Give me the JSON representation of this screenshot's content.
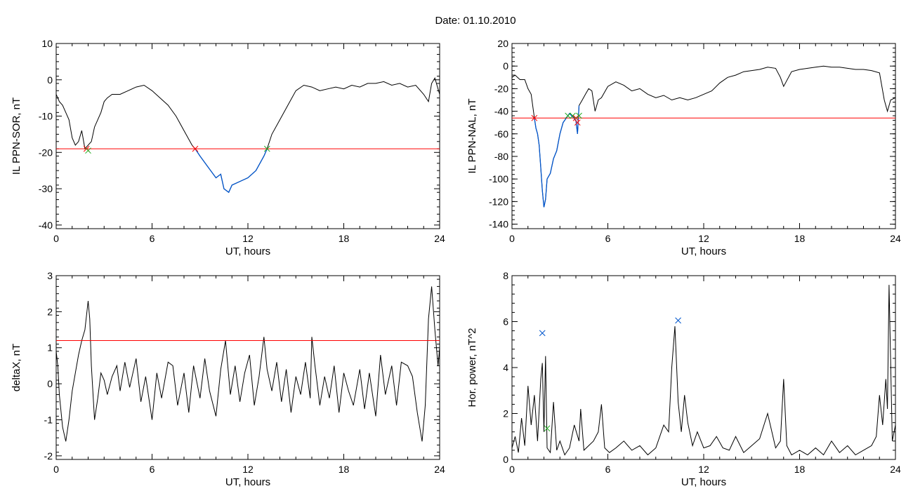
{
  "title": "Date:  01.10.2010",
  "chart_data": [
    {
      "type": "line",
      "id": "p1",
      "xlabel": "UT, hours",
      "ylabel": "IL PPN-SOR, nT",
      "xlim": [
        0,
        24
      ],
      "ylim": [
        -41,
        10
      ],
      "xticks": [
        0,
        6,
        12,
        18,
        24
      ],
      "yticks": [
        10,
        0,
        -10,
        -20,
        -30,
        -40
      ],
      "threshold": -19,
      "main_color": "#000000",
      "highlight_color": "#0055cc",
      "threshold_color": "#ff0000",
      "series": [
        {
          "x": [
            0,
            0.2,
            0.4,
            0.6,
            0.8,
            1.0,
            1.2,
            1.4,
            1.6,
            1.8,
            2.0,
            2.2,
            2.4,
            2.6,
            2.8,
            3.0,
            3.2,
            3.5,
            4.0,
            4.5,
            5.0,
            5.5,
            6.0,
            6.5,
            7.0,
            7.5,
            8.0,
            8.5,
            8.7,
            9.0,
            9.5,
            10.0,
            10.3,
            10.5,
            10.8,
            11.0,
            11.5,
            12.0,
            12.5,
            13.0,
            13.2,
            13.5,
            14.0,
            14.5,
            15.0,
            15.5,
            16.0,
            16.5,
            17.0,
            17.5,
            18.0,
            18.5,
            19.0,
            19.5,
            20.0,
            20.5,
            21.0,
            21.5,
            22.0,
            22.5,
            23.0,
            23.3,
            23.5,
            23.7,
            24.0
          ],
          "y": [
            -4,
            -6,
            -7,
            -9,
            -11,
            -16,
            -18,
            -17,
            -14,
            -19,
            -18,
            -17,
            -13,
            -11,
            -9,
            -6,
            -5,
            -4,
            -4,
            -3,
            -2,
            -1.5,
            -3,
            -5,
            -7,
            -10,
            -14,
            -18,
            -19,
            -21,
            -24,
            -27,
            -26,
            -30,
            -31,
            -29,
            -28,
            -27,
            -25,
            -21,
            -19,
            -15,
            -11,
            -7,
            -3,
            -1.5,
            -2,
            -3,
            -2.5,
            -2,
            -2.5,
            -1.5,
            -2,
            -1,
            -1,
            -0.5,
            -1.5,
            -1,
            -2,
            -1.5,
            -4,
            -6,
            -1,
            0.5,
            -4
          ]
        }
      ],
      "highlight_range": [
        8.7,
        13.2
      ],
      "markers": [
        {
          "x": 1.9,
          "y": -19,
          "color": "#ff0000"
        },
        {
          "x": 2.0,
          "y": -19.5,
          "color": "#22aa22"
        },
        {
          "x": 8.7,
          "y": -19,
          "color": "#ff0000"
        },
        {
          "x": 13.2,
          "y": -19,
          "color": "#22aa22"
        }
      ]
    },
    {
      "type": "line",
      "id": "p2",
      "xlabel": "UT, hours",
      "ylabel": "IL PPN-NAL, nT",
      "xlim": [
        0,
        24
      ],
      "ylim": [
        -144,
        20
      ],
      "xticks": [
        0,
        6,
        12,
        18,
        24
      ],
      "yticks": [
        20,
        0,
        -20,
        -40,
        -60,
        -80,
        -100,
        -120,
        -140
      ],
      "threshold": -46,
      "main_color": "#000000",
      "highlight_color": "#0055cc",
      "threshold_color": "#ff0000",
      "series": [
        {
          "x": [
            0,
            0.2,
            0.5,
            0.8,
            1.0,
            1.2,
            1.4,
            1.5,
            1.6,
            1.7,
            1.8,
            1.9,
            2.0,
            2.1,
            2.2,
            2.4,
            2.6,
            2.8,
            3.0,
            3.2,
            3.4,
            3.6,
            3.8,
            4.0,
            4.1,
            4.2,
            4.4,
            4.6,
            4.8,
            5.0,
            5.2,
            5.4,
            5.6,
            6.0,
            6.5,
            7.0,
            7.5,
            8.0,
            8.5,
            9.0,
            9.5,
            10.0,
            10.5,
            11.0,
            11.5,
            12.0,
            12.5,
            13.0,
            13.5,
            14.0,
            14.5,
            15.0,
            15.5,
            16.0,
            16.5,
            16.8,
            17.0,
            17.5,
            18.0,
            18.5,
            19.0,
            19.5,
            20.0,
            20.5,
            21.0,
            21.5,
            22.0,
            22.5,
            23.0,
            23.3,
            23.5,
            23.7,
            24.0
          ],
          "y": [
            -10,
            -8,
            -12,
            -12,
            -20,
            -25,
            -46,
            -55,
            -60,
            -70,
            -90,
            -110,
            -125,
            -118,
            -100,
            -95,
            -82,
            -75,
            -60,
            -50,
            -46,
            -42,
            -45,
            -48,
            -60,
            -35,
            -30,
            -25,
            -20,
            -22,
            -40,
            -30,
            -28,
            -18,
            -14,
            -17,
            -22,
            -20,
            -25,
            -28,
            -26,
            -30,
            -28,
            -30,
            -28,
            -25,
            -22,
            -15,
            -10,
            -8,
            -5,
            -4,
            -3,
            -1,
            -2,
            -10,
            -18,
            -5,
            -3,
            -2,
            -1,
            0,
            -1,
            -1,
            -2,
            -3,
            -3,
            -4,
            -6,
            -30,
            -40,
            -30,
            -28
          ]
        }
      ],
      "highlight_range": [
        1.4,
        4.2
      ],
      "markers": [
        {
          "x": 1.4,
          "y": -46,
          "color": "#ff0000"
        },
        {
          "x": 3.5,
          "y": -44,
          "color": "#22aa22"
        },
        {
          "x": 3.8,
          "y": -44,
          "color": "#22aa22"
        },
        {
          "x": 4.0,
          "y": -46,
          "color": "#ff0000"
        },
        {
          "x": 4.1,
          "y": -50,
          "color": "#ff0000"
        },
        {
          "x": 4.2,
          "y": -44,
          "color": "#22aa22"
        }
      ]
    },
    {
      "type": "line",
      "id": "p3",
      "xlabel": "UT, hours",
      "ylabel": "deltaX, nT",
      "xlim": [
        0,
        24
      ],
      "ylim": [
        -2.1,
        3
      ],
      "xticks": [
        0,
        6,
        12,
        18,
        24
      ],
      "yticks": [
        3,
        2,
        1,
        0,
        -1,
        -2
      ],
      "threshold": 1.2,
      "main_color": "#000000",
      "threshold_color": "#ff0000",
      "series": [
        {
          "x": [
            0,
            0.1,
            0.2,
            0.4,
            0.6,
            0.8,
            1.0,
            1.2,
            1.4,
            1.6,
            1.8,
            2.0,
            2.1,
            2.2,
            2.4,
            2.6,
            2.8,
            3.0,
            3.2,
            3.5,
            3.8,
            4.0,
            4.3,
            4.6,
            5.0,
            5.3,
            5.6,
            6.0,
            6.3,
            6.6,
            7.0,
            7.3,
            7.6,
            8.0,
            8.3,
            8.6,
            9.0,
            9.3,
            9.6,
            10.0,
            10.3,
            10.6,
            10.9,
            11.2,
            11.5,
            11.8,
            12.1,
            12.4,
            12.7,
            13.0,
            13.2,
            13.5,
            13.8,
            14.1,
            14.4,
            14.7,
            15.0,
            15.3,
            15.6,
            15.9,
            16.0,
            16.2,
            16.5,
            16.8,
            17.1,
            17.4,
            17.7,
            18.0,
            18.3,
            18.6,
            19.0,
            19.3,
            19.6,
            20.0,
            20.3,
            20.6,
            21.0,
            21.3,
            21.6,
            22.0,
            22.3,
            22.6,
            22.9,
            23.1,
            23.3,
            23.5,
            23.7,
            23.9,
            24.0
          ],
          "y": [
            0.9,
            0.5,
            -0.3,
            -1.2,
            -1.6,
            -1.0,
            -0.2,
            0.3,
            0.8,
            1.2,
            1.5,
            2.3,
            1.8,
            0.5,
            -1.0,
            -0.4,
            0.3,
            0.1,
            -0.3,
            0.2,
            0.5,
            -0.2,
            0.6,
            -0.1,
            0.7,
            -0.5,
            0.2,
            -1.0,
            0.3,
            -0.4,
            0.6,
            0.5,
            -0.6,
            0.3,
            -0.8,
            0.5,
            -0.4,
            0.7,
            -0.2,
            -0.9,
            0.4,
            1.2,
            -0.3,
            0.5,
            -0.5,
            0.3,
            0.8,
            -0.6,
            0.2,
            1.3,
            0.4,
            -0.2,
            0.6,
            -0.5,
            0.4,
            -0.8,
            0.2,
            -0.3,
            0.6,
            -0.4,
            1.3,
            0.5,
            -0.6,
            0.2,
            -0.4,
            0.5,
            -0.8,
            0.3,
            -0.2,
            -0.6,
            0.4,
            -0.7,
            0.3,
            -0.9,
            0.8,
            -0.3,
            0.5,
            -0.6,
            0.6,
            0.5,
            0.2,
            -0.8,
            -1.6,
            -0.6,
            1.8,
            2.7,
            1.5,
            0.5,
            1.0
          ]
        }
      ]
    },
    {
      "type": "line",
      "id": "p4",
      "xlabel": "UT, hours",
      "ylabel": "Hor. power, nT^2",
      "xlim": [
        0,
        24
      ],
      "ylim": [
        0,
        8
      ],
      "xticks": [
        0,
        6,
        12,
        18,
        24
      ],
      "yticks": [
        8,
        6,
        4,
        2,
        0
      ],
      "main_color": "#000000",
      "series": [
        {
          "x": [
            0,
            0.2,
            0.4,
            0.6,
            0.8,
            1.0,
            1.2,
            1.4,
            1.6,
            1.8,
            1.9,
            2.0,
            2.1,
            2.2,
            2.4,
            2.6,
            2.8,
            3.0,
            3.3,
            3.6,
            3.9,
            4.2,
            4.3,
            4.5,
            4.8,
            5.1,
            5.4,
            5.6,
            5.8,
            6.1,
            6.5,
            7.0,
            7.5,
            8.0,
            8.5,
            9.0,
            9.5,
            9.8,
            10.0,
            10.2,
            10.4,
            10.6,
            10.8,
            11.0,
            11.3,
            11.6,
            12.0,
            12.4,
            12.8,
            13.2,
            13.6,
            14.0,
            14.5,
            15.0,
            15.5,
            16.0,
            16.5,
            16.8,
            17.0,
            17.2,
            17.5,
            18.0,
            18.5,
            19.0,
            19.5,
            20.0,
            20.5,
            21.0,
            21.5,
            22.0,
            22.5,
            22.8,
            23.0,
            23.2,
            23.4,
            23.5,
            23.6,
            23.8,
            24.0
          ],
          "y": [
            0.5,
            1.0,
            0.3,
            1.8,
            0.6,
            3.2,
            1.5,
            2.8,
            0.8,
            3.5,
            4.2,
            1.2,
            4.5,
            0.5,
            0.3,
            2.5,
            0.4,
            0.8,
            0.2,
            0.5,
            1.5,
            0.8,
            2.2,
            0.4,
            0.6,
            0.8,
            1.2,
            2.4,
            0.5,
            0.3,
            0.5,
            0.8,
            0.4,
            0.6,
            0.2,
            0.5,
            1.5,
            1.2,
            4.0,
            5.8,
            2.5,
            1.2,
            2.8,
            1.6,
            0.6,
            1.2,
            0.5,
            0.6,
            1.0,
            0.5,
            0.4,
            1.0,
            0.3,
            0.6,
            0.9,
            2.0,
            0.5,
            0.8,
            3.5,
            0.6,
            0.2,
            0.4,
            0.2,
            0.5,
            0.2,
            0.8,
            0.3,
            0.6,
            0.2,
            0.4,
            0.6,
            1.0,
            2.8,
            1.5,
            3.5,
            2.2,
            7.6,
            0.8,
            1.5
          ]
        }
      ],
      "markers": [
        {
          "x": 1.9,
          "y": 5.5,
          "color": "#0055cc"
        },
        {
          "x": 10.4,
          "y": 6.05,
          "color": "#0055cc"
        },
        {
          "x": 2.2,
          "y": 1.35,
          "color": "#22aa22"
        }
      ]
    }
  ]
}
